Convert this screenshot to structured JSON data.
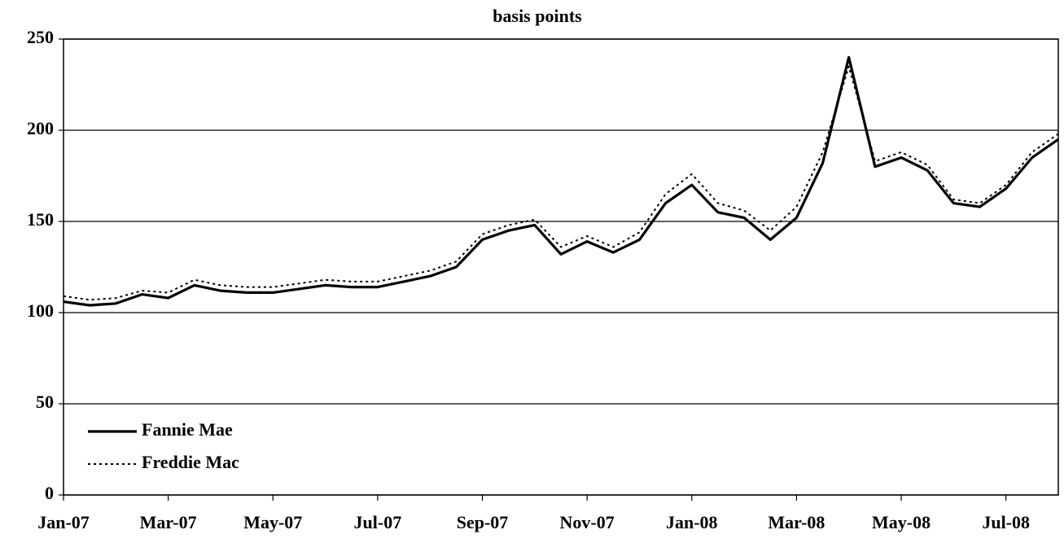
{
  "chart_data": {
    "type": "line",
    "title": "basis points",
    "categories": [
      "Jan-07",
      null,
      null,
      null,
      "Mar-07",
      null,
      null,
      null,
      "May-07",
      null,
      null,
      null,
      "Jul-07",
      null,
      null,
      null,
      "Sep-07",
      null,
      null,
      null,
      "Nov-07",
      null,
      null,
      null,
      "Jan-08",
      null,
      null,
      null,
      "Mar-08",
      null,
      null,
      null,
      "May-08",
      null,
      null,
      null,
      "Jul-08",
      null,
      null
    ],
    "series": [
      {
        "name": "Fannie Mae",
        "color": "#000000",
        "style": "solid",
        "values": [
          106,
          104,
          105,
          110,
          108,
          115,
          112,
          111,
          111,
          113,
          115,
          114,
          114,
          117,
          120,
          125,
          140,
          145,
          148,
          132,
          139,
          133,
          140,
          160,
          170,
          155,
          152,
          140,
          152,
          182,
          240,
          180,
          185,
          178,
          160,
          158,
          168,
          185,
          195
        ]
      },
      {
        "name": "Freddie Mac",
        "color": "#000000",
        "style": "dotted",
        "values": [
          109,
          107,
          108,
          112,
          111,
          118,
          115,
          114,
          114,
          116,
          118,
          117,
          117,
          120,
          123,
          128,
          143,
          148,
          151,
          136,
          142,
          136,
          144,
          165,
          176,
          160,
          156,
          145,
          158,
          188,
          235,
          183,
          188,
          181,
          162,
          160,
          170,
          188,
          198
        ]
      }
    ],
    "ylim": [
      0,
      250
    ],
    "yticks": [
      0,
      50,
      100,
      150,
      200,
      250
    ],
    "grid": true,
    "legend": "lower left"
  }
}
